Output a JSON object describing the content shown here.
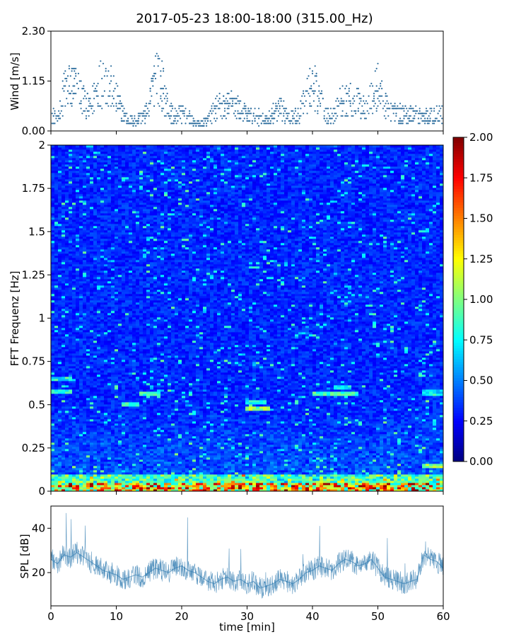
{
  "figure": {
    "title": "2017-05-23 18:00-18:00 (315.00_Hz)"
  },
  "chart_data": [
    {
      "id": "wind",
      "type": "scatter",
      "ylabel": "Wind [m/s]",
      "xlim": [
        0,
        60
      ],
      "ylim": [
        0,
        2.3
      ],
      "yticks": [
        "0.00",
        "1.15",
        "2.30"
      ],
      "ytick_values": [
        0,
        1.15,
        2.3
      ],
      "marker_color": "#2f6f9f",
      "segments": [
        {
          "x": [
            0,
            1,
            2,
            3,
            4,
            5,
            6,
            7,
            8,
            9,
            10,
            11,
            12,
            13,
            14,
            15,
            16,
            17,
            18,
            19,
            20,
            21,
            22,
            23,
            24,
            25,
            26,
            27,
            28,
            29,
            30,
            31,
            32,
            33,
            34,
            35,
            36,
            37,
            38,
            39,
            40,
            41,
            42,
            43,
            44,
            45,
            46,
            47,
            48,
            49,
            50,
            51,
            52,
            53,
            54,
            55,
            56,
            57,
            58,
            59,
            60
          ],
          "y": [
            0.5,
            0.3,
            1.1,
            1.3,
            1.2,
            0.9,
            0.6,
            1.2,
            1.5,
            1.3,
            0.9,
            0.5,
            0.3,
            0.3,
            0.4,
            0.6,
            1.8,
            1.3,
            0.6,
            0.4,
            0.5,
            0.4,
            0.2,
            0.2,
            0.3,
            0.6,
            0.7,
            0.7,
            0.8,
            0.6,
            0.5,
            0.4,
            0.4,
            0.3,
            0.5,
            0.6,
            0.5,
            0.4,
            0.5,
            0.9,
            1.4,
            1.0,
            0.5,
            0.4,
            0.8,
            0.9,
            0.9,
            0.8,
            0.7,
            0.9,
            1.3,
            0.7,
            0.6,
            0.5,
            0.5,
            0.5,
            0.5,
            0.4,
            0.4,
            0.5,
            0.5
          ]
        }
      ]
    },
    {
      "id": "spectrogram",
      "type": "heatmap",
      "ylabel": "FFT Frequenz [Hz]",
      "xlim": [
        0,
        60
      ],
      "ylim": [
        0,
        2
      ],
      "yticks": [
        "0",
        "0.25",
        "0.5",
        "0.75",
        "1",
        "1.25",
        "1.5",
        "1.75",
        "2"
      ],
      "ytick_values": [
        0,
        0.25,
        0.5,
        0.75,
        1,
        1.25,
        1.5,
        1.75,
        2
      ],
      "colormap": "jet",
      "colorbar": {
        "range": [
          0,
          2
        ],
        "ticks": [
          "0.00",
          "0.25",
          "0.50",
          "0.75",
          "1.00",
          "1.25",
          "1.50",
          "1.75",
          "2.00"
        ],
        "tick_values": [
          0,
          0.25,
          0.5,
          0.75,
          1,
          1.25,
          1.5,
          1.75,
          2
        ]
      },
      "bright_bands": [
        {
          "t0": 0,
          "t1": 3.5,
          "f": 0.58,
          "v": 0.85
        },
        {
          "t0": 0,
          "t1": 3.5,
          "f": 0.65,
          "v": 0.75
        },
        {
          "t0": 11,
          "t1": 13.5,
          "f": 0.5,
          "v": 0.9
        },
        {
          "t0": 13.5,
          "t1": 17,
          "f": 0.56,
          "v": 0.9
        },
        {
          "t0": 30,
          "t1": 33.5,
          "f": 0.48,
          "v": 1.05
        },
        {
          "t0": 30,
          "t1": 33,
          "f": 0.52,
          "v": 0.8
        },
        {
          "t0": 40,
          "t1": 47,
          "f": 0.56,
          "v": 0.9
        },
        {
          "t0": 43,
          "t1": 46,
          "f": 0.6,
          "v": 0.75
        },
        {
          "t0": 56.5,
          "t1": 60,
          "f": 0.57,
          "v": 0.7
        },
        {
          "t0": 57,
          "t1": 60,
          "f": 0.15,
          "v": 1.1
        }
      ]
    },
    {
      "id": "spl",
      "type": "line",
      "ylabel": "SPL [dB]",
      "xlabel": "time [min]",
      "xlim": [
        0,
        60
      ],
      "ylim": [
        5,
        50
      ],
      "yticks": [
        "20",
        "40"
      ],
      "ytick_values": [
        20,
        40
      ],
      "xticks": [
        "0",
        "10",
        "20",
        "30",
        "40",
        "50",
        "60"
      ],
      "xtick_values": [
        0,
        10,
        20,
        30,
        40,
        50,
        60
      ],
      "line_color": "#2f7bb0",
      "x": [
        0,
        1,
        2,
        3,
        4,
        5,
        6,
        7,
        8,
        9,
        10,
        11,
        12,
        13,
        14,
        15,
        16,
        17,
        18,
        19,
        20,
        21,
        22,
        23,
        24,
        25,
        26,
        27,
        28,
        29,
        30,
        31,
        32,
        33,
        34,
        35,
        36,
        37,
        38,
        39,
        40,
        41,
        42,
        43,
        44,
        45,
        46,
        47,
        48,
        49,
        50,
        51,
        52,
        53,
        54,
        55,
        56,
        57,
        58,
        59,
        60
      ],
      "y": [
        26,
        24,
        28,
        27,
        29,
        27,
        25,
        23,
        21,
        20,
        19,
        17,
        18,
        19,
        18,
        20,
        22,
        21,
        20,
        22,
        23,
        21,
        20,
        18,
        16,
        15,
        17,
        18,
        16,
        17,
        15,
        16,
        13,
        14,
        15,
        17,
        16,
        15,
        17,
        20,
        21,
        23,
        22,
        21,
        24,
        26,
        25,
        23,
        24,
        26,
        22,
        18,
        17,
        16,
        15,
        16,
        17,
        28,
        26,
        25,
        22
      ]
    }
  ]
}
